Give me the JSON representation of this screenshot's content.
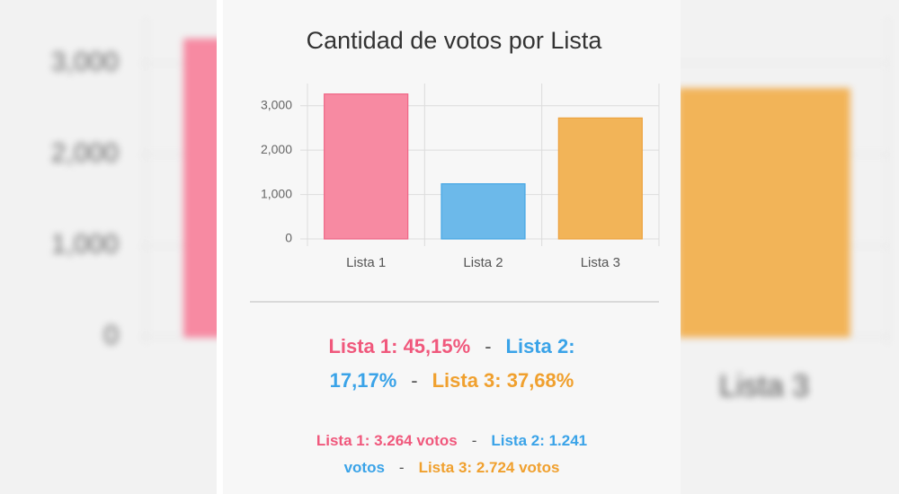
{
  "chart_data": {
    "type": "bar",
    "title": "Cantidad de votos por Lista",
    "categories": [
      "Lista 1",
      "Lista 2",
      "Lista 3"
    ],
    "values": [
      3264,
      1241,
      2724
    ],
    "colors": [
      "#f78aa2",
      "#6cb9ea",
      "#f2b458"
    ],
    "border_colors": [
      "#ef6686",
      "#45a6e4",
      "#eda23e"
    ],
    "ylim": [
      0,
      3500
    ],
    "yticks": [
      0,
      {
        "value": 1000,
        "label": "1,000"
      },
      {
        "value": 2000,
        "label": "2,000"
      },
      {
        "value": 3000,
        "label": "3,000"
      }
    ],
    "grid": true
  },
  "summary": {
    "percent_lines": [
      [
        {
          "text": "Lista 1: 45,15%",
          "color": "#f0587c"
        },
        {
          "text": "-",
          "color": "#555555"
        },
        {
          "text": "Lista 2:",
          "color": "#3aa3e8"
        }
      ],
      [
        {
          "text": "17,17%",
          "color": "#3aa3e8"
        },
        {
          "text": "-",
          "color": "#555555"
        },
        {
          "text": "Lista 3: 37,68%",
          "color": "#f0a02e"
        }
      ]
    ],
    "vote_lines": [
      [
        {
          "text": "Lista 1: 3.264 votos",
          "color": "#f0587c"
        },
        {
          "text": "-",
          "color": "#555555"
        },
        {
          "text": "Lista 2: 1.241",
          "color": "#3aa3e8"
        }
      ],
      [
        {
          "text": "votos",
          "color": "#3aa3e8"
        },
        {
          "text": "-",
          "color": "#555555"
        },
        {
          "text": "Lista 3: 2.724 votos",
          "color": "#f0a02e"
        }
      ]
    ]
  }
}
